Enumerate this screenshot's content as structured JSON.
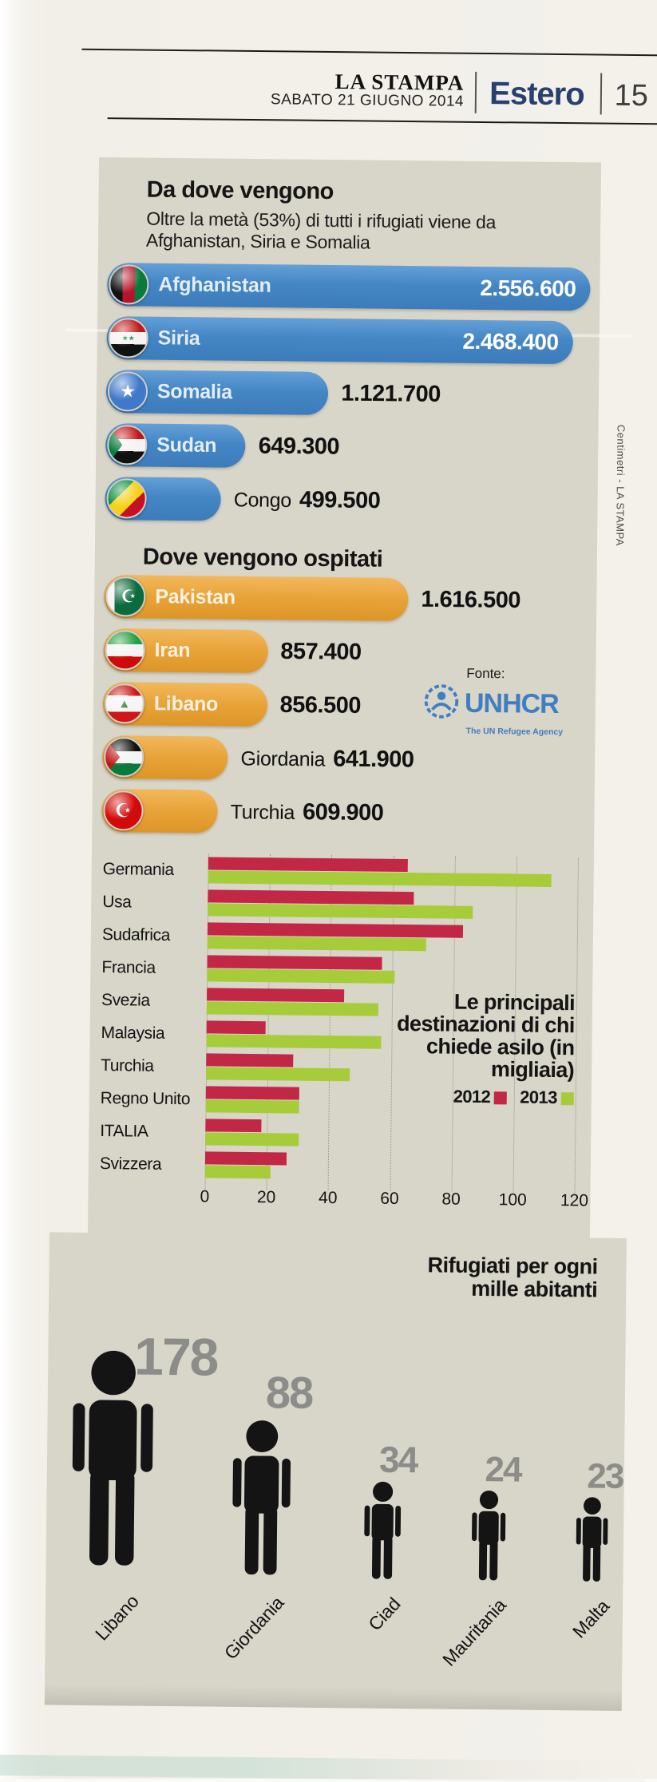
{
  "header": {
    "brand": "LA STAMPA",
    "date": "SABATO 21 GIUGNO 2014",
    "section": "Estero",
    "page_number": "15"
  },
  "credit": "Centimetri - LA STAMPA",
  "colors": {
    "bar_blue": "#4486c4",
    "bar_orange": "#e8a338",
    "bar_red_2012": "#c22745",
    "bar_green_2013": "#a6cc3a",
    "section_blue": "#27406f",
    "panel_gray": "#d8d5c9",
    "unhcr_blue": "#3f7ec2",
    "pictogram_number_gray": "#8c8c88"
  },
  "chart_data": [
    {
      "type": "bar",
      "orientation": "horizontal",
      "title": "Da dove vengono",
      "subtitle": "Oltre la metà (53%) di tutti i rifugiati viene da Afghanistan, Siria e Somalia",
      "categories": [
        "Afghanistan",
        "Siria",
        "Somalia",
        "Sudan",
        "Congo"
      ],
      "values": [
        2556600,
        2468400,
        1121700,
        649300,
        499500
      ],
      "display_values": [
        "2.556.600",
        "2.468.400",
        "1.121.700",
        "649.300",
        "499.500"
      ],
      "flags": [
        "afghanistan",
        "siria",
        "somalia",
        "sudan",
        "congo"
      ],
      "bar_color": "#4486c4"
    },
    {
      "type": "bar",
      "orientation": "horizontal",
      "title": "Dove vengono ospitati",
      "categories": [
        "Pakistan",
        "Iran",
        "Libano",
        "Giordania",
        "Turchia"
      ],
      "values": [
        1616500,
        857400,
        856500,
        641900,
        609900
      ],
      "display_values": [
        "1.616.500",
        "857.400",
        "856.500",
        "641.900",
        "609.900"
      ],
      "flags": [
        "pakistan",
        "iran",
        "libano",
        "giordania",
        "turchia"
      ],
      "bar_color": "#e8a338",
      "source": {
        "label": "Fonte:",
        "name": "UNHCR",
        "tagline": "The UN Refugee Agency"
      }
    },
    {
      "type": "bar",
      "orientation": "horizontal",
      "title": "Le principali destinazioni di chi chiede asilo (in migliaia)",
      "categories": [
        "Germania",
        "Usa",
        "Sudafrica",
        "Francia",
        "Svezia",
        "Malaysia",
        "Turchia",
        "Regno Unito",
        "ITALIA",
        "Svizzera"
      ],
      "series": [
        {
          "name": "2012",
          "color": "#c22745",
          "values": [
            64,
            66,
            82,
            56,
            44,
            19,
            28,
            30,
            18,
            26
          ]
        },
        {
          "name": "2013",
          "color": "#a6cc3a",
          "values": [
            110,
            85,
            70,
            60,
            55,
            56,
            46,
            30,
            30,
            21
          ]
        }
      ],
      "xlim": [
        0,
        120
      ],
      "xticks": [
        0,
        20,
        40,
        60,
        80,
        100,
        120
      ],
      "grid": true,
      "legend_position": "bottom-right"
    },
    {
      "type": "pictogram",
      "title": "Rifugiati per ogni mille abitanti",
      "categories": [
        "Libano",
        "Giordania",
        "Ciad",
        "Mauritania",
        "Malta"
      ],
      "values": [
        178,
        88,
        34,
        24,
        23
      ]
    }
  ]
}
